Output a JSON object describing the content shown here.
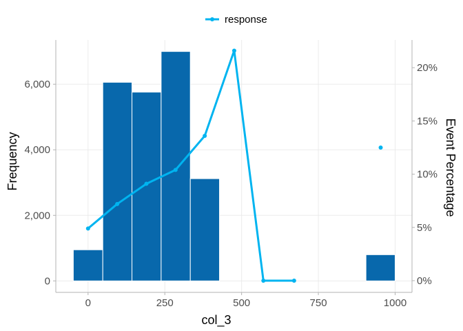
{
  "colors": {
    "bar": "#0868ac",
    "bar_stroke": "#ffffff",
    "line": "#00b4f0",
    "grid": "#ebebeb",
    "axis": "#b3b3b3"
  },
  "legend": {
    "label": "response",
    "position": "top-center"
  },
  "chart_data": {
    "type": "bar",
    "title": "",
    "xlabel": "col_3",
    "ylabel": "Frequency",
    "y2label": "Event Percentage",
    "grid": true,
    "xlim": [
      -105,
      1055
    ],
    "ylim": [
      -350,
      7350
    ],
    "y2lim": [
      -1.1,
      22.6
    ],
    "x_ticks": [
      0,
      250,
      500,
      750,
      1000
    ],
    "x_tick_labels": [
      "0",
      "250",
      "500",
      "750",
      "1000"
    ],
    "y_ticks": [
      0,
      2000,
      4000,
      6000
    ],
    "y_tick_labels": [
      "0",
      "2,000",
      "4,000",
      "6,000"
    ],
    "y2_ticks": [
      0,
      5,
      10,
      15,
      20
    ],
    "y2_tick_labels": [
      "0%",
      "5%",
      "10%",
      "15%",
      "20%"
    ],
    "histogram": {
      "bins": [
        {
          "x0": -48,
          "x1": 48,
          "count": 950
        },
        {
          "x0": 48,
          "x1": 143,
          "count": 6060
        },
        {
          "x0": 143,
          "x1": 238,
          "count": 5760
        },
        {
          "x0": 238,
          "x1": 333,
          "count": 7000
        },
        {
          "x0": 333,
          "x1": 428,
          "count": 3120
        },
        {
          "x0": 905,
          "x1": 1000,
          "count": 800
        }
      ]
    },
    "series": [
      {
        "name": "response",
        "points": [
          {
            "x": 0,
            "y": 4.9
          },
          {
            "x": 95,
            "y": 7.2
          },
          {
            "x": 190,
            "y": 9.1
          },
          {
            "x": 285,
            "y": 10.4
          },
          {
            "x": 380,
            "y": 13.6
          },
          {
            "x": 476,
            "y": 21.6
          },
          {
            "x": 571,
            "y": 0.0
          },
          {
            "x": 671,
            "y": 0.0
          }
        ]
      },
      {
        "name": "response",
        "points": [
          {
            "x": 953,
            "y": 12.5
          }
        ]
      }
    ]
  }
}
